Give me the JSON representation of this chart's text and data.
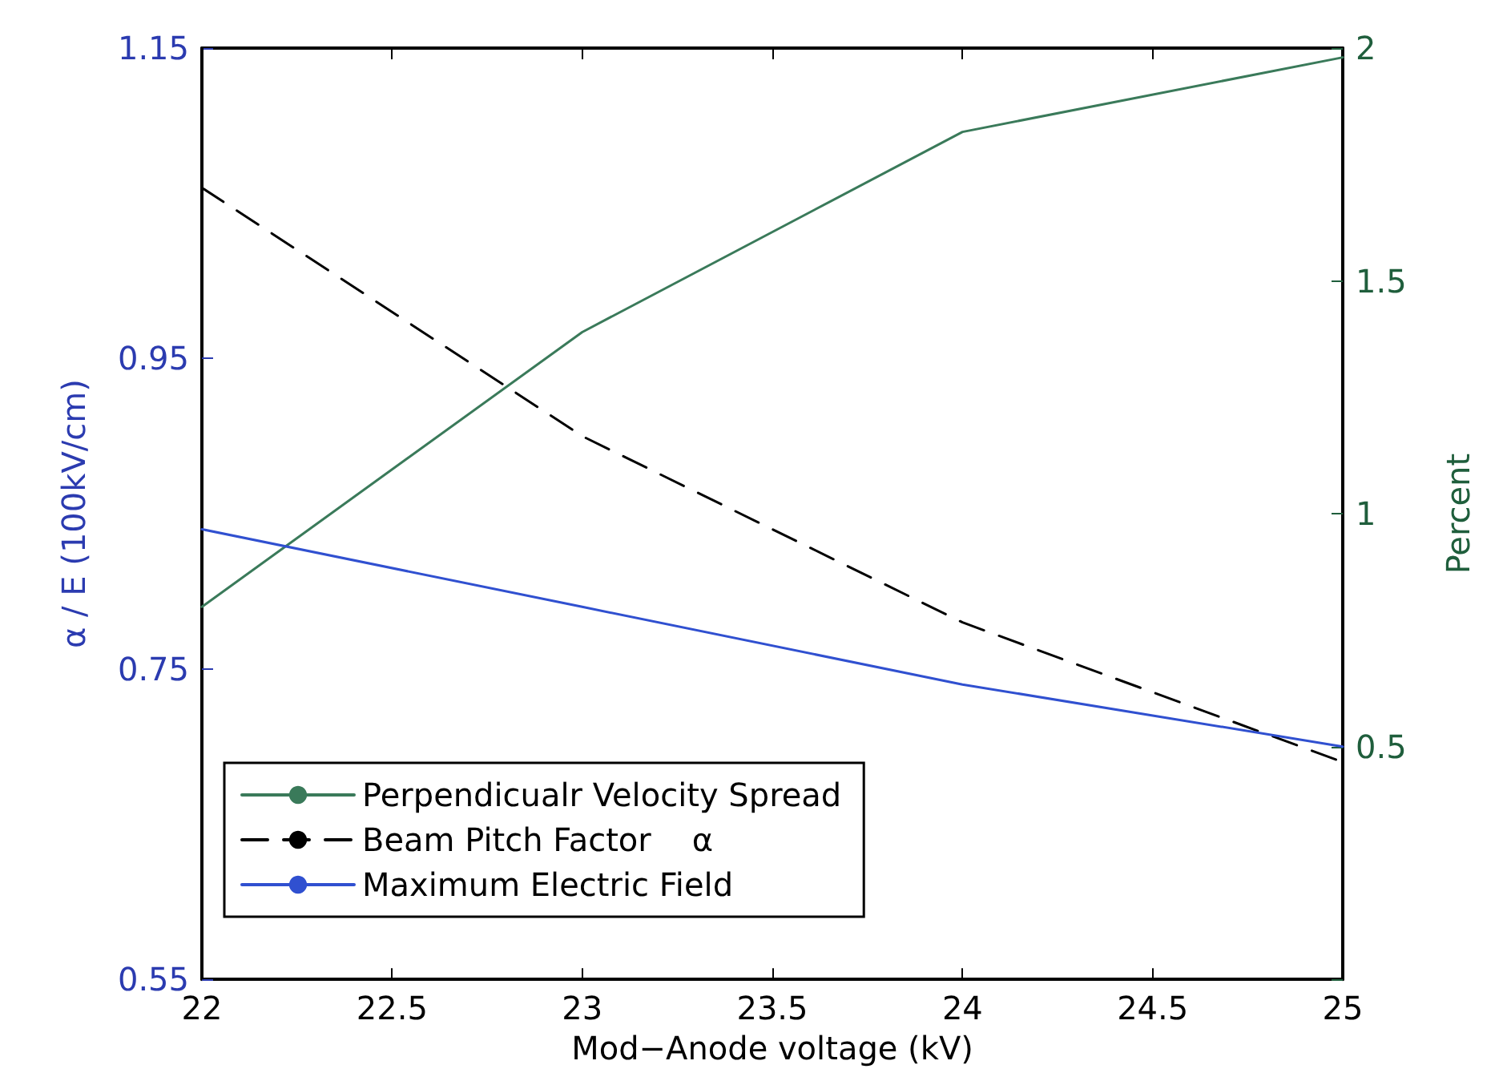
{
  "chart_data": {
    "type": "line",
    "xlabel": "Mod−Anode voltage (kV)",
    "ylabel": "α / E (100kV/cm)",
    "y2label": "Percent",
    "x": [
      22,
      23,
      24,
      25
    ],
    "series": [
      {
        "name": "Perpendicualr Velocity Spread",
        "color": "#3a7a5a",
        "axis": "y2",
        "line_style": "solid",
        "values": [
          0.8,
          1.39,
          1.82,
          1.98
        ]
      },
      {
        "name": "Beam Pitch Factor    α",
        "color": "#000000",
        "line_style": "dashed",
        "values": [
          1.06,
          0.9,
          0.78,
          0.69
        ]
      },
      {
        "name": "Maximum Electric Field",
        "color": "#3050d0",
        "line_style": "solid",
        "values": [
          0.84,
          0.79,
          0.74,
          0.7
        ]
      }
    ],
    "xlim": [
      22,
      25
    ],
    "xticks": [
      22,
      22.5,
      23,
      23.5,
      24,
      24.5,
      25
    ],
    "ylim": [
      0.55,
      1.15
    ],
    "yticks": [
      0.55,
      0.75,
      0.95,
      1.15
    ],
    "y2lim": [
      0,
      2
    ],
    "y2ticks": [
      {
        "value": 0,
        "label": null
      },
      0.5,
      1,
      1.5,
      2
    ],
    "legend": "bottom left",
    "grid": false,
    "marker": "none"
  }
}
